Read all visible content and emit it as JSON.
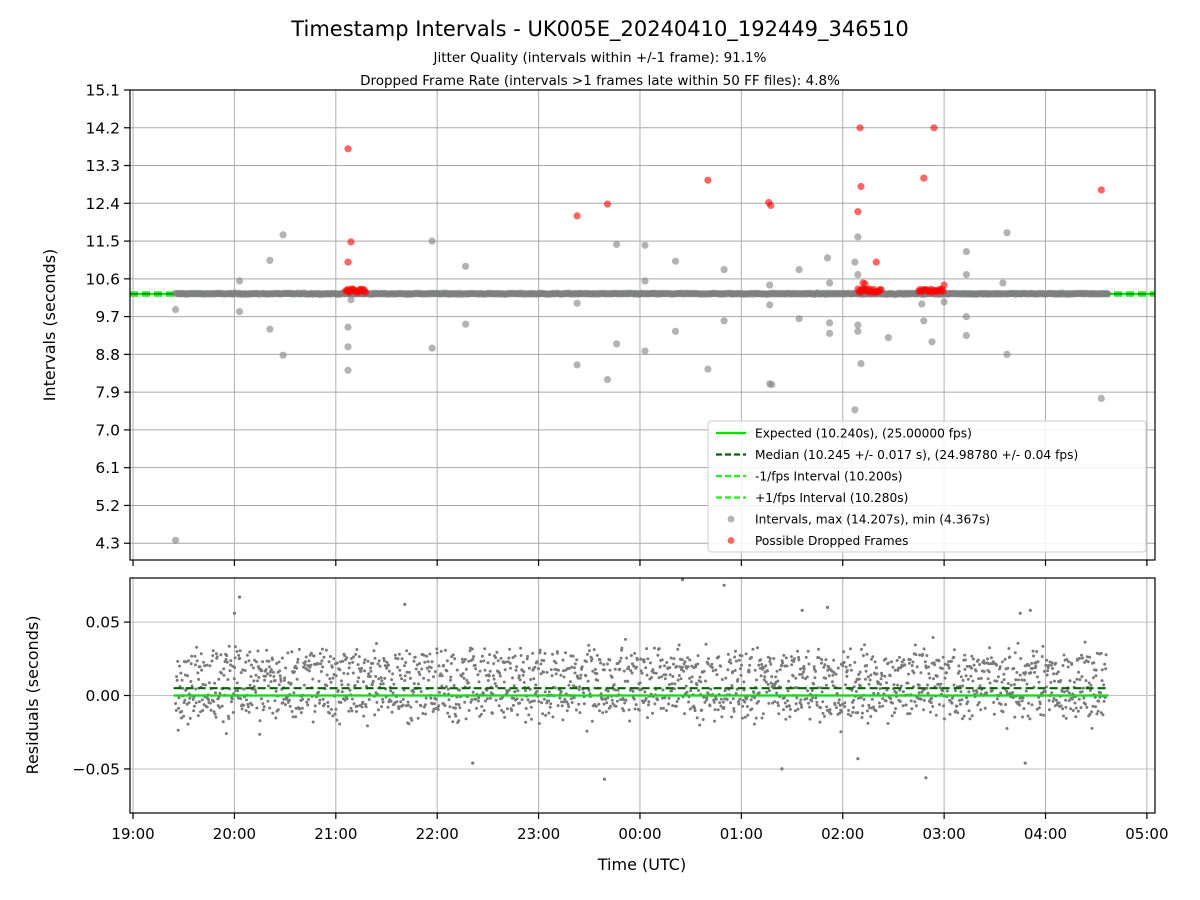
{
  "chart_data": [
    {
      "type": "scatter",
      "title": "Timestamp Intervals - UK005E_20240410_192449_346510",
      "subtitle_lines": [
        "Jitter Quality (intervals within +/-1 frame): 91.1%",
        "Dropped Frame Rate (intervals >1 frames late within 50 FF files): 4.8%"
      ],
      "ylabel": "Intervals (seconds)",
      "ylim": [
        3.9,
        15.1
      ],
      "yticks": [
        "15.1",
        "14.2",
        "13.3",
        "12.4",
        "11.5",
        "10.6",
        "9.7",
        "8.8",
        "7.9",
        "7.0",
        "6.1",
        "5.2",
        "4.3"
      ],
      "xlim_hours": [
        18.97,
        29.08
      ],
      "grid": true,
      "legend_position": "lower-right",
      "lines": [
        {
          "name": "Expected (10.240s), (25.00000 fps)",
          "y": 10.24,
          "color": "#00e000",
          "style": "solid"
        },
        {
          "name": "Median (10.245 +/- 0.017 s), (24.98780 +/- 0.04 fps)",
          "y": 10.245,
          "color": "#006400",
          "style": "dashed"
        },
        {
          "name": "-1/fps Interval (10.200s)",
          "y": 10.2,
          "color": "#22ee22",
          "style": "dashed"
        },
        {
          "name": "+1/fps Interval (10.280s)",
          "y": 10.28,
          "color": "#22ee22",
          "style": "dashed"
        }
      ],
      "series": [
        {
          "name": "Intervals, max (14.207s), min (4.367s)",
          "color": "#808080",
          "outliers": [
            [
              19.42,
              4.37
            ],
            [
              19.42,
              9.87
            ],
            [
              20.05,
              10.55
            ],
            [
              20.05,
              9.82
            ],
            [
              20.35,
              11.04
            ],
            [
              20.35,
              9.4
            ],
            [
              20.48,
              11.65
            ],
            [
              20.48,
              8.78
            ],
            [
              21.12,
              9.45
            ],
            [
              21.12,
              8.98
            ],
            [
              21.12,
              8.42
            ],
            [
              21.15,
              10.1
            ],
            [
              21.95,
              11.5
            ],
            [
              21.95,
              8.95
            ],
            [
              22.28,
              10.9
            ],
            [
              22.28,
              9.52
            ],
            [
              23.38,
              10.02
            ],
            [
              23.38,
              8.55
            ],
            [
              23.68,
              8.2
            ],
            [
              23.77,
              11.42
            ],
            [
              23.77,
              9.05
            ],
            [
              24.05,
              11.4
            ],
            [
              24.05,
              10.55
            ],
            [
              24.05,
              8.88
            ],
            [
              24.35,
              11.02
            ],
            [
              24.35,
              9.35
            ],
            [
              24.67,
              8.45
            ],
            [
              24.83,
              10.82
            ],
            [
              24.83,
              9.6
            ],
            [
              25.28,
              10.45
            ],
            [
              25.28,
              9.98
            ],
            [
              25.28,
              8.1
            ],
            [
              25.3,
              8.08
            ],
            [
              25.57,
              10.82
            ],
            [
              25.57,
              9.65
            ],
            [
              25.85,
              11.1
            ],
            [
              25.87,
              10.5
            ],
            [
              25.87,
              9.3
            ],
            [
              25.87,
              9.55
            ],
            [
              26.12,
              11.0
            ],
            [
              26.15,
              11.6
            ],
            [
              26.15,
              10.7
            ],
            [
              26.15,
              9.35
            ],
            [
              26.15,
              9.5
            ],
            [
              26.18,
              8.58
            ],
            [
              26.12,
              7.48
            ],
            [
              26.45,
              9.2
            ],
            [
              26.78,
              10.0
            ],
            [
              26.8,
              9.6
            ],
            [
              26.88,
              9.1
            ],
            [
              27.0,
              10.05
            ],
            [
              27.22,
              11.25
            ],
            [
              27.22,
              10.7
            ],
            [
              27.22,
              9.7
            ],
            [
              27.22,
              9.25
            ],
            [
              27.58,
              10.5
            ],
            [
              27.62,
              11.7
            ],
            [
              27.62,
              8.8
            ],
            [
              28.55,
              7.75
            ]
          ]
        },
        {
          "name": "Possible Dropped Frames",
          "color": "#ff0000",
          "points": [
            [
              21.12,
              13.7
            ],
            [
              21.15,
              11.48
            ],
            [
              21.12,
              11.0
            ],
            [
              21.12,
              10.35
            ],
            [
              23.38,
              12.1
            ],
            [
              23.68,
              12.38
            ],
            [
              24.67,
              12.95
            ],
            [
              25.27,
              12.42
            ],
            [
              25.29,
              12.35
            ],
            [
              26.17,
              14.2
            ],
            [
              26.18,
              12.8
            ],
            [
              26.15,
              12.2
            ],
            [
              26.33,
              11.0
            ],
            [
              26.8,
              13.0
            ],
            [
              26.9,
              14.2
            ],
            [
              28.55,
              12.72
            ],
            [
              26.2,
              10.5
            ],
            [
              26.22,
              10.48
            ],
            [
              27.0,
              10.45
            ]
          ],
          "dense_clusters_hours": [
            [
              21.1,
              21.3
            ],
            [
              26.15,
              26.38
            ],
            [
              26.75,
              27.0
            ]
          ]
        }
      ]
    },
    {
      "type": "scatter",
      "ylabel": "Residuals (seconds)",
      "xlabel": "Time (UTC)",
      "ylim": [
        -0.08,
        0.08
      ],
      "yticks": [
        "0.05",
        "0.00",
        "−0.05"
      ],
      "xticks": [
        "19:00",
        "20:00",
        "21:00",
        "22:00",
        "23:00",
        "00:00",
        "01:00",
        "02:00",
        "03:00",
        "04:00",
        "05:00"
      ],
      "x_range_hours": [
        19.42,
        28.6
      ],
      "grid": true,
      "lines": [
        {
          "y": 0.0,
          "color": "#00e000",
          "style": "solid"
        },
        {
          "y": 0.005,
          "color": "#006400",
          "style": "dashed"
        }
      ],
      "series": [
        {
          "color": "#808080",
          "outliers": [
            [
              20.0,
              0.056
            ],
            [
              20.05,
              0.067
            ],
            [
              21.68,
              0.062
            ],
            [
              22.35,
              -0.046
            ],
            [
              23.65,
              -0.057
            ],
            [
              24.42,
              0.079
            ],
            [
              24.83,
              0.075
            ],
            [
              25.4,
              -0.05
            ],
            [
              25.6,
              0.058
            ],
            [
              25.85,
              0.06
            ],
            [
              26.15,
              -0.043
            ],
            [
              26.82,
              -0.056
            ],
            [
              27.75,
              0.056
            ],
            [
              27.85,
              0.058
            ],
            [
              27.8,
              -0.046
            ]
          ]
        }
      ]
    }
  ]
}
